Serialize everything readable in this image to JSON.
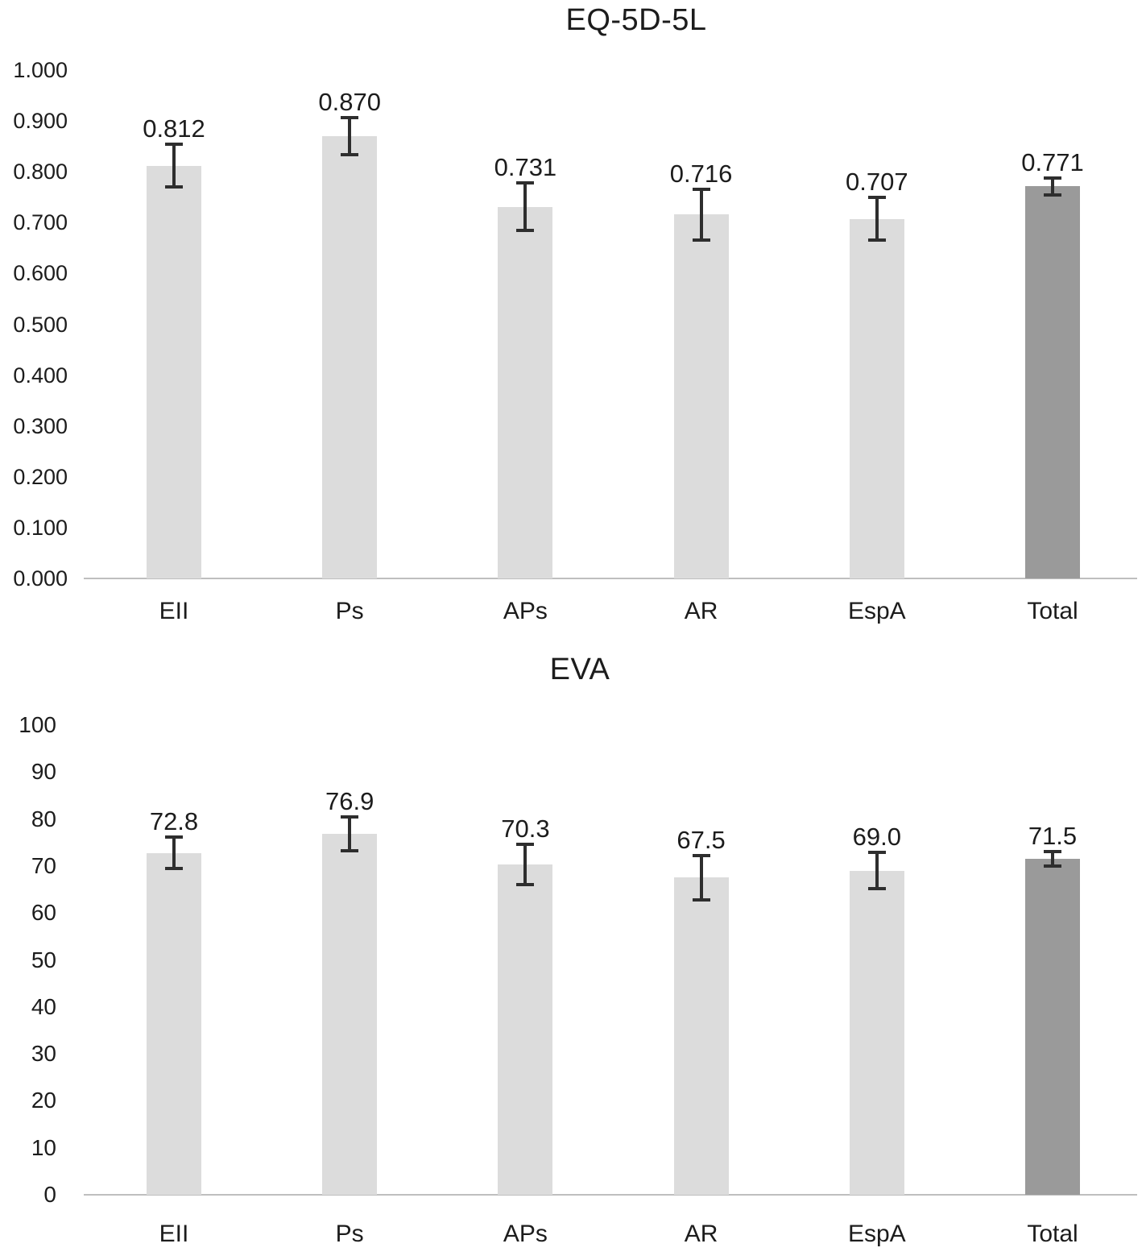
{
  "figure": {
    "colors": {
      "bar": "#dcdcdc",
      "bar_total": "#9a9a9a",
      "error": "#2e2e2e",
      "axis_line": "#bfbfbf",
      "text": "#1c1c1c"
    }
  },
  "chart_data": [
    {
      "type": "bar",
      "title": "EQ-5D-5L",
      "categories": [
        "EII",
        "Ps",
        "APs",
        "AR",
        "EspA",
        "Total"
      ],
      "values": [
        0.812,
        0.87,
        0.731,
        0.716,
        0.707,
        0.771
      ],
      "value_labels": [
        "0.812",
        "0.870",
        "0.731",
        "0.716",
        "0.707",
        "0.771"
      ],
      "errors": [
        0.042,
        0.036,
        0.047,
        0.05,
        0.042,
        0.017
      ],
      "highlight_category": "Total",
      "highlight_index": 5,
      "xlabel": "",
      "ylabel": "",
      "ylim": [
        0,
        1.0
      ],
      "ytick_values": [
        0,
        0.1,
        0.2,
        0.3,
        0.4,
        0.5,
        0.6,
        0.7,
        0.8,
        0.9,
        1.0
      ],
      "ytick_labels": [
        "0.000",
        "0.100",
        "0.200",
        "0.300",
        "0.400",
        "0.500",
        "0.600",
        "0.700",
        "0.800",
        "0.900",
        "1.000"
      ],
      "grid": false,
      "legend": "none"
    },
    {
      "type": "bar",
      "title": "EVA",
      "categories": [
        "EII",
        "Ps",
        "APs",
        "AR",
        "EspA",
        "Total"
      ],
      "values": [
        72.8,
        76.9,
        70.3,
        67.5,
        69.0,
        71.5
      ],
      "value_labels": [
        "72.8",
        "76.9",
        "70.3",
        "67.5",
        "69.0",
        "71.5"
      ],
      "errors": [
        3.4,
        3.6,
        4.3,
        4.7,
        3.9,
        1.5
      ],
      "highlight_category": "Total",
      "highlight_index": 5,
      "xlabel": "",
      "ylabel": "",
      "ylim": [
        0,
        100
      ],
      "ytick_values": [
        0,
        10,
        20,
        30,
        40,
        50,
        60,
        70,
        80,
        90,
        100
      ],
      "ytick_labels": [
        "0",
        "10",
        "20",
        "30",
        "40",
        "50",
        "60",
        "70",
        "80",
        "90",
        "100"
      ],
      "grid": false,
      "legend": "none"
    }
  ]
}
